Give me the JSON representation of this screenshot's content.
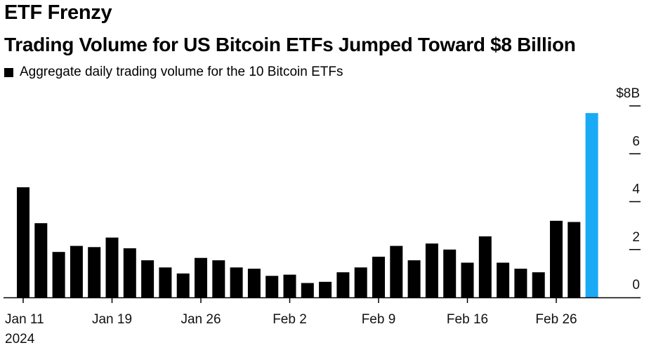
{
  "title": "ETF Frenzy",
  "subtitle": "Trading Volume for US Bitcoin ETFs Jumped Toward $8 Billion",
  "chart_data": {
    "type": "bar",
    "series": [
      {
        "name": "Aggregate daily trading volume for the 10 Bitcoin ETFs",
        "color": "#000000",
        "highlight_color": "#1aa9f5",
        "highlight_index": 32,
        "values": [
          4.6,
          3.1,
          1.9,
          2.15,
          2.1,
          2.5,
          2.05,
          1.55,
          1.25,
          1.0,
          1.65,
          1.55,
          1.25,
          1.2,
          0.9,
          0.95,
          0.6,
          0.65,
          1.05,
          1.25,
          1.7,
          2.15,
          1.55,
          2.25,
          2.0,
          1.45,
          2.55,
          1.45,
          1.2,
          1.05,
          3.2,
          3.15,
          7.7
        ]
      }
    ],
    "x_tick_labels": [
      {
        "index": 0,
        "label": "Jan 11",
        "sub": "2024"
      },
      {
        "index": 5,
        "label": "Jan 19",
        "sub": ""
      },
      {
        "index": 10,
        "label": "Jan 26",
        "sub": ""
      },
      {
        "index": 15,
        "label": "Feb 2",
        "sub": ""
      },
      {
        "index": 20,
        "label": "Feb 9",
        "sub": ""
      },
      {
        "index": 25,
        "label": "Feb 16",
        "sub": ""
      },
      {
        "index": 30,
        "label": "Feb 26",
        "sub": ""
      }
    ],
    "y_ticks": [
      {
        "value": 0,
        "label": "0"
      },
      {
        "value": 2,
        "label": "2"
      },
      {
        "value": 4,
        "label": "4"
      },
      {
        "value": 6,
        "label": "6"
      },
      {
        "value": 8,
        "label": "$8B"
      }
    ],
    "ylim": [
      0,
      8
    ],
    "y_axis_position": "right",
    "grid": false
  }
}
